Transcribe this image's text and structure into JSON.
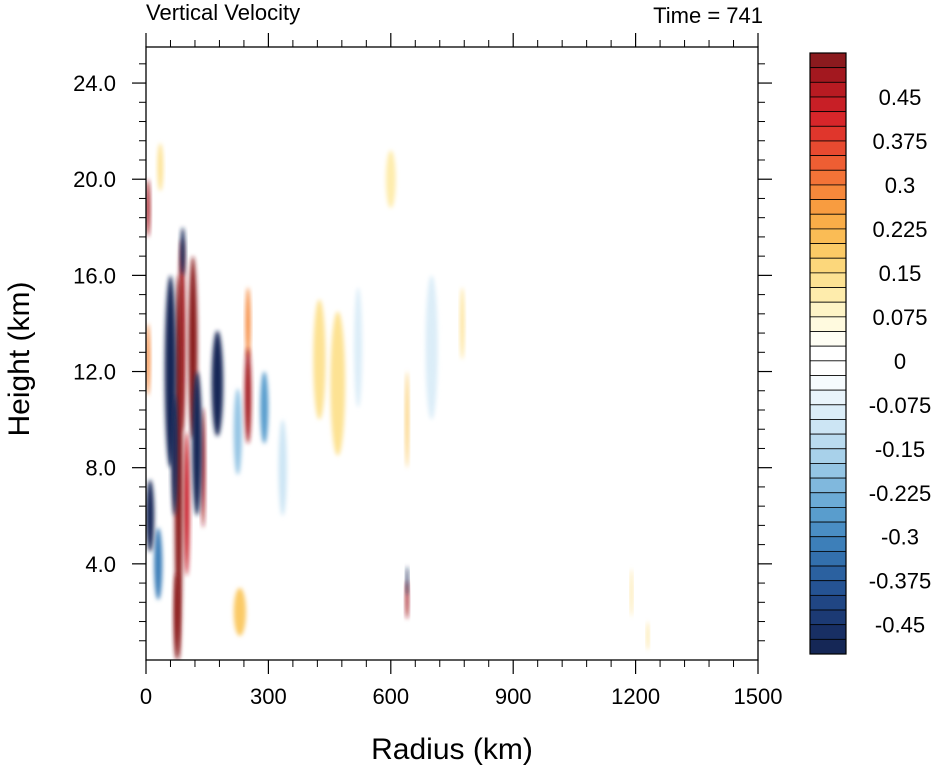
{
  "header": {
    "left_title": "Vertical Velocity",
    "right_title": "Time = 741"
  },
  "chart_data": {
    "type": "heatmap",
    "title": "Vertical Velocity",
    "subtitle": "Time = 741",
    "xlabel": "Radius (km)",
    "ylabel": "Height (km)",
    "xlim": [
      0,
      1500
    ],
    "ylim": [
      0,
      25.5
    ],
    "x_ticks": [
      "0",
      "300",
      "600",
      "900",
      "1200",
      "1500"
    ],
    "y_ticks": [
      "4.0",
      "8.0",
      "12.0",
      "16.0",
      "20.0",
      "24.0"
    ],
    "colorbar": {
      "labels": [
        "0.45",
        "0.375",
        "0.3",
        "0.225",
        "0.15",
        "0.075",
        "0",
        "-0.075",
        "-0.15",
        "-0.225",
        "-0.3",
        "-0.375",
        "-0.45"
      ],
      "levels": [
        0.525,
        0.5,
        0.475,
        0.45,
        0.425,
        0.4,
        0.375,
        0.35,
        0.325,
        0.3,
        0.275,
        0.25,
        0.225,
        0.2,
        0.175,
        0.15,
        0.125,
        0.1,
        0.075,
        0.05,
        0.025,
        0,
        -0.025,
        -0.05,
        -0.075,
        -0.1,
        -0.125,
        -0.15,
        -0.175,
        -0.2,
        -0.225,
        -0.25,
        -0.275,
        -0.3,
        -0.325,
        -0.35,
        -0.375,
        -0.4,
        -0.425,
        -0.45,
        -0.475,
        -0.5
      ],
      "colors": [
        "#8b1a1e",
        "#a3181f",
        "#b81b22",
        "#c81f26",
        "#d7262a",
        "#e0362c",
        "#e84a30",
        "#ee5e33",
        "#f37337",
        "#f6883b",
        "#f89c40",
        "#f9ad48",
        "#fabc55",
        "#fbca66",
        "#fcd77b",
        "#fde293",
        "#feecac",
        "#fef4c6",
        "#fffadf",
        "#fffef4",
        "#ffffff",
        "#ffffff",
        "#f6fbfe",
        "#e9f4fb",
        "#dbedf8",
        "#cce5f4",
        "#badbef",
        "#a8d1ea",
        "#94c5e4",
        "#80b8dd",
        "#6cabd6",
        "#599dcd",
        "#4a8ec4",
        "#3d7fb9",
        "#3370ad",
        "#2b61a0",
        "#255393",
        "#204684",
        "#1c3a74",
        "#182f64",
        "#152756"
      ]
    },
    "features": [
      {
        "r": 80,
        "h": 8.0,
        "dr": 10,
        "dh": 8.0,
        "w": 0.6
      },
      {
        "r": 88,
        "h": 13.5,
        "dr": 8,
        "dh": 4.0,
        "w": 0.5
      },
      {
        "r": 115,
        "h": 13.0,
        "dr": 11,
        "dh": 3.8,
        "w": 0.6
      },
      {
        "r": 100,
        "h": 6.5,
        "dr": 7,
        "dh": 3.0,
        "w": 0.45
      },
      {
        "r": 75,
        "h": 1.8,
        "dr": 7,
        "dh": 1.8,
        "w": 0.6
      },
      {
        "r": 140,
        "h": 8.0,
        "dr": 5,
        "dh": 2.5,
        "w": 0.5
      },
      {
        "r": 60,
        "h": 12.0,
        "dr": 14,
        "dh": 4.0,
        "w": -0.6
      },
      {
        "r": 70,
        "h": 8.5,
        "dr": 8,
        "dh": 2.5,
        "w": -0.6
      },
      {
        "r": 125,
        "h": 9.0,
        "dr": 12,
        "dh": 3.0,
        "w": -0.6
      },
      {
        "r": 90,
        "h": 17.0,
        "dr": 6,
        "dh": 1.0,
        "w": -0.5
      },
      {
        "r": 10,
        "h": 6.0,
        "dr": 10,
        "dh": 1.5,
        "w": -0.6
      },
      {
        "r": 175,
        "h": 11.5,
        "dr": 14,
        "dh": 2.2,
        "w": -0.6
      },
      {
        "r": 30,
        "h": 4.0,
        "dr": 10,
        "dh": 1.5,
        "w": -0.3
      },
      {
        "r": 5,
        "h": 18.8,
        "dr": 5,
        "dh": 1.2,
        "w": 0.5
      },
      {
        "r": 5,
        "h": 12.5,
        "dr": 5,
        "dh": 1.5,
        "w": 0.3
      },
      {
        "r": 250,
        "h": 11.0,
        "dr": 8,
        "dh": 2.0,
        "w": 0.5
      },
      {
        "r": 250,
        "h": 14.0,
        "dr": 6,
        "dh": 1.5,
        "w": 0.3
      },
      {
        "r": 290,
        "h": 10.5,
        "dr": 10,
        "dh": 1.5,
        "w": -0.25
      },
      {
        "r": 225,
        "h": 9.5,
        "dr": 10,
        "dh": 1.8,
        "w": -0.18
      },
      {
        "r": 230,
        "h": 2.0,
        "dr": 15,
        "dh": 1.0,
        "w": 0.18
      },
      {
        "r": 35,
        "h": 20.5,
        "dr": 7,
        "dh": 1.0,
        "w": 0.15
      },
      {
        "r": 425,
        "h": 12.5,
        "dr": 15,
        "dh": 2.5,
        "w": 0.15
      },
      {
        "r": 470,
        "h": 11.5,
        "dr": 18,
        "dh": 3.0,
        "w": 0.15
      },
      {
        "r": 600,
        "h": 20.0,
        "dr": 12,
        "dh": 1.2,
        "w": 0.12
      },
      {
        "r": 640,
        "h": 2.5,
        "dr": 4,
        "dh": 0.8,
        "w": 0.5
      },
      {
        "r": 640,
        "h": 3.3,
        "dr": 3,
        "dh": 0.6,
        "w": -0.5
      },
      {
        "r": 640,
        "h": 10.0,
        "dr": 4,
        "dh": 2.0,
        "w": 0.18
      },
      {
        "r": 775,
        "h": 14.0,
        "dr": 5,
        "dh": 1.5,
        "w": 0.15
      },
      {
        "r": 1190,
        "h": 2.8,
        "dr": 3,
        "dh": 1.0,
        "w": 0.15
      },
      {
        "r": 1230,
        "h": 1.0,
        "dr": 3,
        "dh": 0.6,
        "w": 0.15
      },
      {
        "r": 520,
        "h": 13.0,
        "dr": 10,
        "dh": 2.5,
        "w": -0.08
      },
      {
        "r": 700,
        "h": 13.0,
        "dr": 15,
        "dh": 3.0,
        "w": -0.08
      },
      {
        "r": 335,
        "h": 8.0,
        "dr": 10,
        "dh": 2.0,
        "w": -0.1
      }
    ]
  }
}
